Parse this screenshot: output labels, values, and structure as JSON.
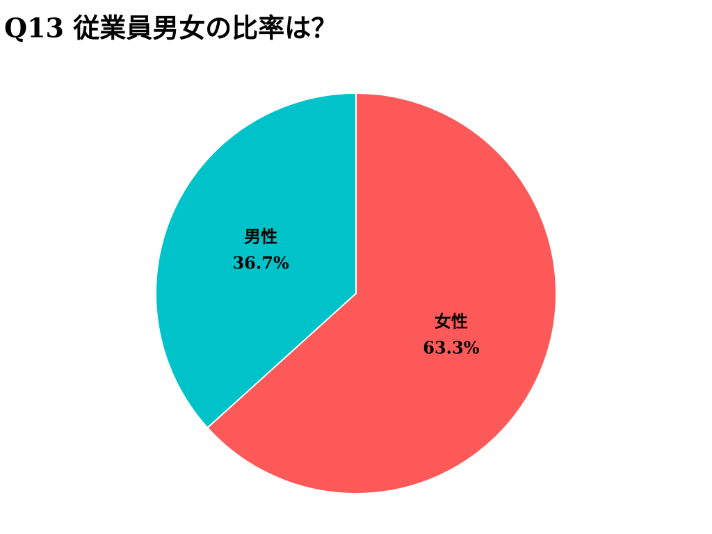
{
  "chart_data": {
    "type": "pie",
    "title": "Q13 従業員男女の比率は？",
    "categories": [
      "女性",
      "男性"
    ],
    "values": [
      63.3,
      36.7
    ],
    "value_labels": [
      "63.3%",
      "36.7%"
    ],
    "colors": [
      "#fe5959",
      "#00c2c9"
    ]
  }
}
